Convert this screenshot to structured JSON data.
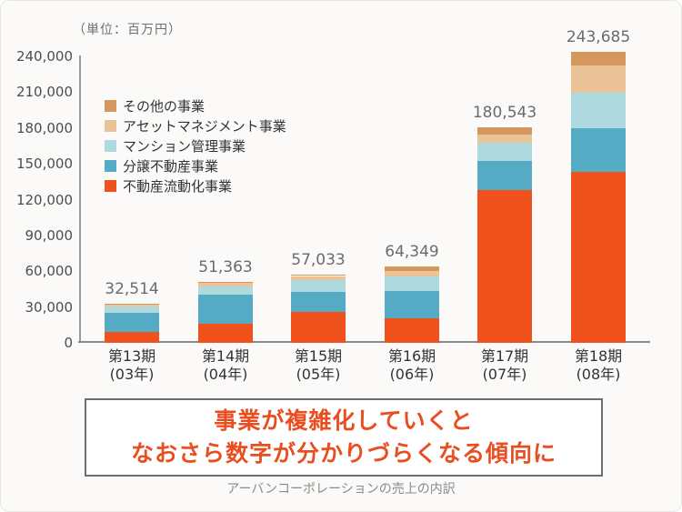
{
  "page": {
    "background": "#fbfaf8"
  },
  "chart": {
    "unit_label": "（単位：百万円）"
  },
  "chart_data": {
    "type": "bar",
    "stacked": true,
    "title": "",
    "xlabel": "",
    "ylabel": "百万円",
    "unit_label": "（単位：百万円）",
    "grid": false,
    "legend_position": "upper-left-inside",
    "categories": [
      "第13期",
      "第14期",
      "第15期",
      "第16期",
      "第17期",
      "第18期"
    ],
    "category_sublabels": [
      "(03年)",
      "(04年)",
      "(05年)",
      "(06年)",
      "(07年)",
      "(08年)"
    ],
    "totals": [
      32514,
      51363,
      57033,
      64349,
      180543,
      243685
    ],
    "totals_display": [
      "32,514",
      "51,363",
      "57,033",
      "64,349",
      "180,543",
      "243,685"
    ],
    "series": [
      {
        "name": "不動産流動化事業",
        "color": "#f0521e",
        "values": [
          9000,
          16000,
          26000,
          20300,
          127700,
          143600
        ]
      },
      {
        "name": "分譲不動産事業",
        "color": "#55abc3",
        "values": [
          16000,
          24500,
          17000,
          23300,
          24700,
          36300
        ]
      },
      {
        "name": "マンション管理事業",
        "color": "#aed9de",
        "values": [
          5500,
          6500,
          9500,
          12200,
          15100,
          29300
        ]
      },
      {
        "name": "アセットマネジメント事業",
        "color": "#ebc398",
        "values": [
          1500,
          3000,
          3500,
          4400,
          6800,
          22900
        ]
      },
      {
        "name": "その他の事業",
        "color": "#d6975f",
        "values": [
          514,
          1363,
          1033,
          4149,
          6243,
          11585
        ]
      }
    ],
    "ylim": [
      0,
      240000
    ],
    "ytick_step": 30000,
    "ytick_labels": [
      "0",
      "30,000",
      "60,000",
      "90,000",
      "120,000",
      "150,000",
      "180,000",
      "210,000",
      "240,000"
    ]
  },
  "callout": {
    "line1": "事業が複雑化していくと",
    "line2": "なおさら数字が分かりづらくなる傾向に",
    "text_color": "#e94e21",
    "border_color": "#6e6e6e"
  },
  "caption": "アーバンコーポレーションの売上の内訳"
}
